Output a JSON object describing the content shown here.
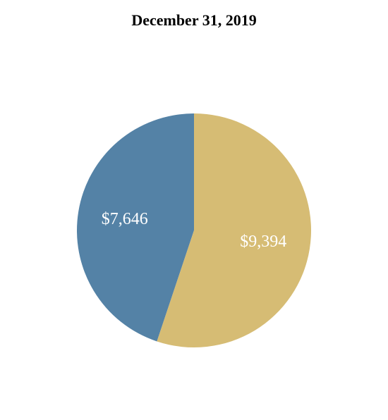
{
  "chart_data": {
    "type": "pie",
    "title": "December 31, 2019",
    "slices": [
      {
        "label": "$7,646",
        "value": 7646,
        "color": "#5482a6"
      },
      {
        "label": "$9,394",
        "value": 9394,
        "color": "#d6bc74"
      }
    ],
    "legend": "none"
  }
}
